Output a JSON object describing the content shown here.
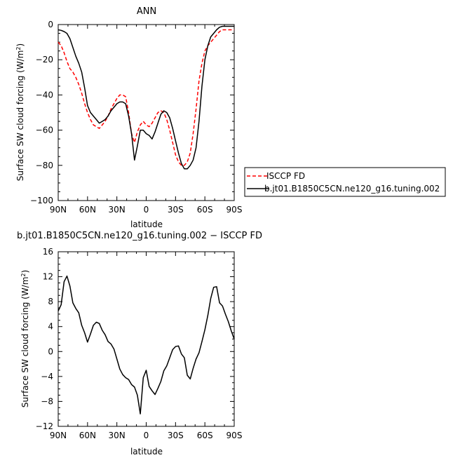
{
  "chart_data": [
    {
      "type": "line",
      "title": "ANN",
      "xlabel": "latitude",
      "ylabel": "Surface SW cloud forcing (W/m",
      "ylabel_superscript": "2",
      "ylabel_suffix": ")",
      "xlim": [
        -90,
        90
      ],
      "ylim": [
        -100,
        0
      ],
      "x_ticks": [
        -90,
        -60,
        -30,
        0,
        30,
        60,
        90
      ],
      "x_tick_labels": [
        "90N",
        "60N",
        "30N",
        "0",
        "30S",
        "60S",
        "90S"
      ],
      "y_ticks": [
        -100,
        -80,
        -60,
        -40,
        -20,
        0
      ],
      "y_tick_labels": [
        "−100",
        "−80",
        "−60",
        "−40",
        "−20",
        "0"
      ],
      "legend_position": "right",
      "series": [
        {
          "name": "ISCCP FD",
          "color": "#ff0000",
          "dash": "dashed",
          "x": [
            -90,
            -87,
            -84,
            -81,
            -78,
            -75,
            -72,
            -69,
            -66,
            -63,
            -60,
            -57,
            -54,
            -51,
            -48,
            -45,
            -42,
            -39,
            -36,
            -33,
            -30,
            -27,
            -24,
            -21,
            -18,
            -15,
            -12,
            -9,
            -6,
            -3,
            0,
            3,
            6,
            9,
            12,
            15,
            18,
            21,
            24,
            27,
            30,
            33,
            36,
            39,
            42,
            45,
            48,
            51,
            54,
            57,
            60,
            63,
            66,
            69,
            72,
            75,
            78,
            81,
            84,
            87,
            90
          ],
          "y": [
            -10,
            -12,
            -16,
            -21,
            -25,
            -27,
            -30,
            -34,
            -39,
            -45,
            -50,
            -54,
            -57,
            -58,
            -59,
            -57,
            -55,
            -52,
            -48,
            -45,
            -42,
            -40,
            -40,
            -41,
            -50,
            -62,
            -67,
            -61,
            -57,
            -55,
            -57,
            -58,
            -56,
            -53,
            -50,
            -49,
            -50,
            -54,
            -60,
            -67,
            -74,
            -78,
            -80,
            -80,
            -78,
            -73,
            -62,
            -48,
            -32,
            -22,
            -15,
            -12,
            -10,
            -8,
            -6,
            -4,
            -3,
            -3,
            -3,
            -3,
            -3
          ]
        },
        {
          "name": "b.jt01.B1850C5CN.ne120_g16.tuning.002",
          "color": "#000000",
          "dash": "solid",
          "x": [
            -90,
            -87,
            -84,
            -81,
            -78,
            -75,
            -72,
            -69,
            -66,
            -63,
            -60,
            -57,
            -54,
            -51,
            -48,
            -45,
            -42,
            -39,
            -36,
            -33,
            -30,
            -27,
            -24,
            -21,
            -18,
            -15,
            -12,
            -9,
            -6,
            -3,
            0,
            3,
            6,
            9,
            12,
            15,
            18,
            21,
            24,
            27,
            30,
            33,
            36,
            39,
            42,
            45,
            48,
            51,
            54,
            57,
            60,
            63,
            66,
            69,
            72,
            75,
            78,
            81,
            84,
            87,
            90
          ],
          "y": [
            -3,
            -3.3,
            -4,
            -5,
            -8,
            -13,
            -18,
            -22,
            -27,
            -36,
            -46,
            -50,
            -52,
            -54,
            -56,
            -55,
            -54,
            -52,
            -49,
            -47,
            -45,
            -44,
            -44,
            -45,
            -52,
            -62,
            -77,
            -69,
            -60,
            -60,
            -62,
            -63,
            -65,
            -61,
            -56,
            -51,
            -49,
            -50,
            -53,
            -59,
            -66,
            -73,
            -79,
            -82,
            -82,
            -80,
            -77,
            -70,
            -55,
            -35,
            -20,
            -12,
            -7,
            -5,
            -3,
            -1.5,
            -1,
            -1,
            -1,
            -1,
            -1
          ]
        }
      ]
    },
    {
      "type": "line",
      "title": "b.jt01.B1850C5CN.ne120_g16.tuning.002 − ISCCP FD",
      "xlabel": "latitude",
      "ylabel": "Surface SW cloud forcing (W/m",
      "ylabel_superscript": "2",
      "ylabel_suffix": ")",
      "xlim": [
        -90,
        90
      ],
      "ylim": [
        -12,
        16
      ],
      "x_ticks": [
        -90,
        -60,
        -30,
        0,
        30,
        60,
        90
      ],
      "x_tick_labels": [
        "90N",
        "60N",
        "30N",
        "0",
        "30S",
        "60S",
        "90S"
      ],
      "y_ticks": [
        -12,
        -8,
        -4,
        0,
        4,
        8,
        12,
        16
      ],
      "y_tick_labels": [
        "−12",
        "−8",
        "−4",
        "0",
        "4",
        "8",
        "12",
        "16"
      ],
      "series": [
        {
          "color": "#000000",
          "dash": "solid",
          "x": [
            -90,
            -87,
            -84,
            -81,
            -78,
            -75,
            -72,
            -69,
            -66,
            -63,
            -60,
            -57,
            -54,
            -51,
            -48,
            -45,
            -42,
            -39,
            -36,
            -33,
            -30,
            -27,
            -24,
            -21,
            -18,
            -15,
            -12,
            -9,
            -6,
            -3,
            0,
            3,
            6,
            9,
            12,
            15,
            18,
            21,
            24,
            27,
            30,
            33,
            36,
            39,
            42,
            45,
            48,
            51,
            54,
            57,
            60,
            63,
            66,
            69,
            72,
            75,
            78,
            81,
            84,
            87,
            90
          ],
          "y": [
            6.5,
            7.5,
            11.2,
            12.1,
            10.5,
            7.8,
            6.9,
            6.2,
            4.2,
            3.0,
            1.5,
            2.8,
            4.2,
            4.7,
            4.5,
            3.4,
            2.7,
            1.6,
            1.2,
            0.4,
            -1.2,
            -2.8,
            -3.7,
            -4.2,
            -4.5,
            -5.3,
            -5.7,
            -7.0,
            -10.0,
            -4.2,
            -3.0,
            -5.6,
            -6.3,
            -6.9,
            -5.9,
            -4.8,
            -3.1,
            -2.3,
            -1.0,
            0.3,
            0.8,
            0.9,
            -0.4,
            -1.0,
            -3.8,
            -4.4,
            -2.7,
            -1.2,
            -0.2,
            1.6,
            3.5,
            5.8,
            8.5,
            10.3,
            10.4,
            7.8,
            7.3,
            6.0,
            4.8,
            3.3,
            2.0
          ]
        }
      ]
    }
  ],
  "legend": {
    "items": [
      {
        "label": "ISCCP FD",
        "color": "#ff0000",
        "dash": "dashed"
      },
      {
        "label": "b.jt01.B1850C5CN.ne120_g16.tuning.002",
        "color": "#000000",
        "dash": "solid"
      }
    ]
  }
}
